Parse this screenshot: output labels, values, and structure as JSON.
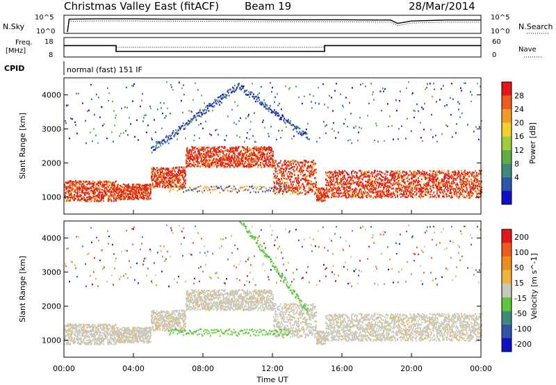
{
  "header": {
    "radar_title": "Christmas Valley East (fitACF)",
    "beam": "Beam 19",
    "date": "28/Mar/2014"
  },
  "noise_panel": {
    "left_label": "N.Sky",
    "right_label": "N.Search",
    "left_ticks": [
      "10^5",
      "10^0"
    ],
    "right_ticks": [
      "10^5",
      "10^0"
    ]
  },
  "freq_panel": {
    "left_label_1": "Freq.",
    "left_label_2": "[MHz]",
    "right_label": "Nave",
    "left_ticks": [
      "18",
      "8"
    ],
    "right_ticks": [
      "60",
      "0"
    ]
  },
  "cpid_panel": {
    "label": "CPID",
    "mode": "normal (fast) 151 IF"
  },
  "chart_data": [
    {
      "type": "line",
      "title": "N.Sky / N.Search",
      "series": [
        {
          "name": "N.Sky",
          "x_hours": [
            0.2,
            0.3,
            2,
            4,
            6,
            8,
            10,
            12,
            14,
            16,
            18,
            18.8,
            19.2,
            20,
            22,
            24
          ],
          "values_log10": [
            0,
            4.2,
            4.3,
            4.3,
            4.2,
            4.2,
            4.1,
            4.0,
            4.0,
            4.0,
            3.9,
            3.9,
            2.8,
            3.6,
            3.9,
            3.9
          ]
        }
      ]
    },
    {
      "type": "line",
      "title": "Freq. / Nave",
      "series": [
        {
          "name": "Freq.",
          "x_hours": [
            0,
            3,
            3,
            15,
            15,
            24
          ],
          "values": [
            14,
            14,
            10.5,
            10.5,
            14,
            14
          ]
        },
        {
          "name": "Nave",
          "x_hours": [
            0,
            3,
            3,
            15,
            15,
            24
          ],
          "values": [
            36,
            36,
            30,
            30,
            36,
            36
          ]
        }
      ]
    },
    {
      "type": "heatmap",
      "ylabel": "Slant Range [km]",
      "colorbar_label": "Power [dB]",
      "colorbar_ticks": [
        "28",
        "24",
        "20",
        "16",
        "12",
        "8",
        "4"
      ],
      "ylim": [
        500,
        4500
      ],
      "y_ticks": [
        "1000",
        "2000",
        "3000",
        "4000"
      ]
    },
    {
      "type": "heatmap",
      "ylabel": "Slant Range [km]",
      "colorbar_label": "Velocity [m s^-1]",
      "colorbar_ticks": [
        "200",
        "100",
        "50",
        "15",
        "-15",
        "-50",
        "-100",
        "-200"
      ],
      "ylim": [
        500,
        4500
      ],
      "y_ticks": [
        "1000",
        "2000",
        "3000",
        "4000"
      ]
    }
  ],
  "xaxis": {
    "label": "Time UT",
    "ticks": [
      "00:00",
      "04:00",
      "08:00",
      "12:00",
      "16:00",
      "20:00",
      "00:00"
    ]
  },
  "colors": {
    "power": [
      "#1010c8",
      "#2f55a8",
      "#3e8a78",
      "#5fae3f",
      "#9fcc3a",
      "#f2d02a",
      "#f39a22",
      "#ee5b1c",
      "#e31818"
    ],
    "velocity": [
      "#1010c8",
      "#2f55a8",
      "#3e8a78",
      "#5ec63a",
      "#c8c8bc",
      "#f0b43a",
      "#f08b1e",
      "#ee5b1c",
      "#e31818"
    ]
  }
}
